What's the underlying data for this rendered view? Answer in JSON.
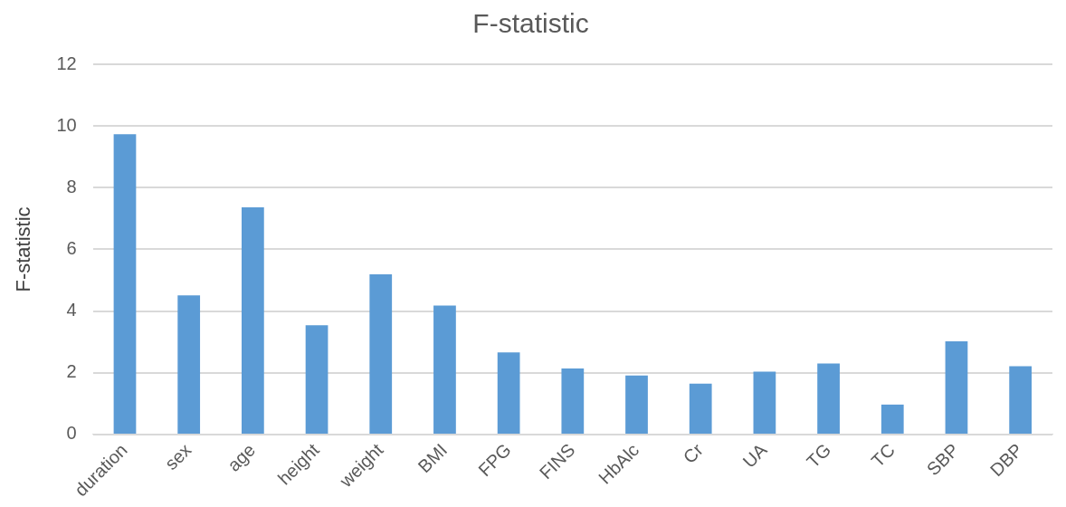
{
  "chart_data": {
    "type": "bar",
    "title": "F-statistic",
    "ylabel": "F-statistic",
    "categories": [
      "duration",
      "sex",
      "age",
      "height",
      "weight",
      "BMI",
      "FPG",
      "FINS",
      "HbAlc",
      "Cr",
      "UA",
      "TG",
      "TC",
      "SBP",
      "DBP"
    ],
    "values": [
      9.73,
      4.51,
      7.36,
      3.54,
      5.19,
      4.18,
      2.66,
      2.14,
      1.91,
      1.65,
      2.04,
      2.3,
      0.97,
      3.02,
      2.21
    ],
    "color": "#5b9bd5",
    "ylim": [
      0,
      12
    ],
    "yticks": [
      0,
      2,
      4,
      6,
      8,
      10,
      12
    ],
    "grid": "y",
    "legend": false
  }
}
